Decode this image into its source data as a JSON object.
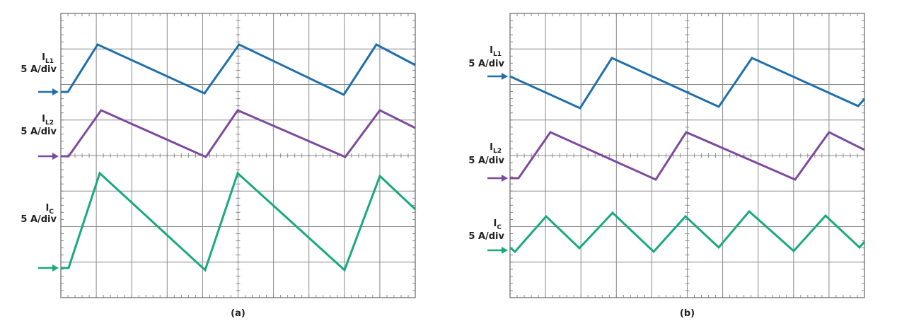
{
  "panels": [
    {
      "caption": "(a)",
      "labels": [
        {
          "symbol": "I",
          "subscript": "L1",
          "scale": "5 A/div"
        },
        {
          "symbol": "I",
          "subscript": "L2",
          "scale": "5 A/div"
        },
        {
          "symbol": "I",
          "subscript": "C",
          "scale": "5 A/div"
        }
      ]
    },
    {
      "caption": "(b)",
      "labels": [
        {
          "symbol": "I",
          "subscript": "L1",
          "scale": "5 A/div"
        },
        {
          "symbol": "I",
          "subscript": "L2",
          "scale": "5 A/div"
        },
        {
          "symbol": "I",
          "subscript": "C",
          "scale": "5 A/div"
        }
      ]
    }
  ]
}
